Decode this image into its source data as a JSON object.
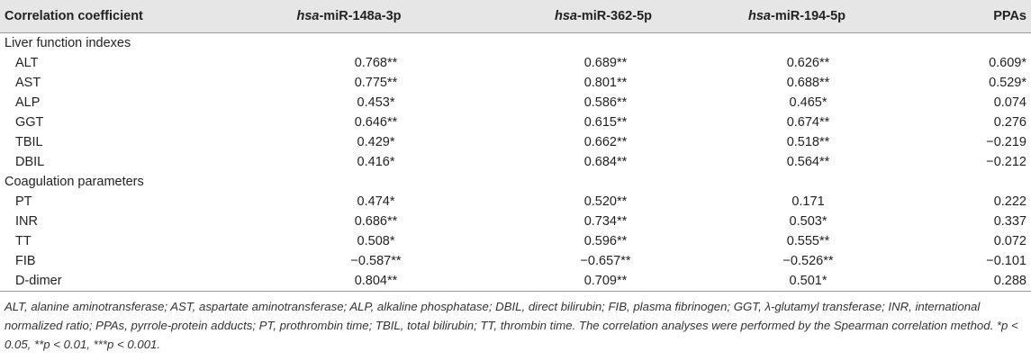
{
  "table": {
    "header": [
      {
        "plain": "Correlation coefficient"
      },
      {
        "italic": "hsa",
        "rest": "-miR-148a-3p"
      },
      {
        "italic": "hsa",
        "rest": "-miR-362-5p"
      },
      {
        "italic": "hsa",
        "rest": "-miR-194-5p"
      },
      {
        "plain": "PPAs"
      }
    ],
    "groups": [
      {
        "title": "Liver function indexes",
        "rows": [
          [
            "ALT",
            "0.768**",
            "0.689**",
            "0.626**",
            "0.609*"
          ],
          [
            "AST",
            "0.775**",
            "0.801**",
            "0.688**",
            "0.529*"
          ],
          [
            "ALP",
            "0.453*",
            "0.586**",
            "0.465*",
            "0.074"
          ],
          [
            "GGT",
            "0.646**",
            "0.615**",
            "0.674**",
            "0.276"
          ],
          [
            "TBIL",
            "0.429*",
            "0.662**",
            "0.518**",
            "−0.219"
          ],
          [
            "DBIL",
            "0.416*",
            "0.684**",
            "0.564**",
            "−0.212"
          ]
        ]
      },
      {
        "title": "Coagulation parameters",
        "rows": [
          [
            "PT",
            "0.474*",
            "0.520**",
            "0.171",
            "0.222"
          ],
          [
            "INR",
            "0.686**",
            "0.734**",
            "0.503*",
            "0.337"
          ],
          [
            "TT",
            "0.508*",
            "0.596**",
            "0.555**",
            "0.072"
          ],
          [
            "FIB",
            "−0.587**",
            "−0.657**",
            "−0.526**",
            "−0.101"
          ],
          [
            "D-dimer",
            "0.804**",
            "0.709**",
            "0.501*",
            "0.288"
          ]
        ]
      }
    ],
    "footnote": "ALT, alanine aminotransferase; AST, aspartate aminotransferase; ALP, alkaline phosphatase; DBIL, direct bilirubin; FIB, plasma fibrinogen; GGT, λ-glutamyl transferase; INR, international normalized ratio; PPAs, pyrrole-protein adducts; PT, prothrombin time; TBIL, total bilirubin; TT, thrombin time. The correlation analyses were performed by the Spearman correlation method. *p < 0.05, **p < 0.01, ***p < 0.001."
  }
}
